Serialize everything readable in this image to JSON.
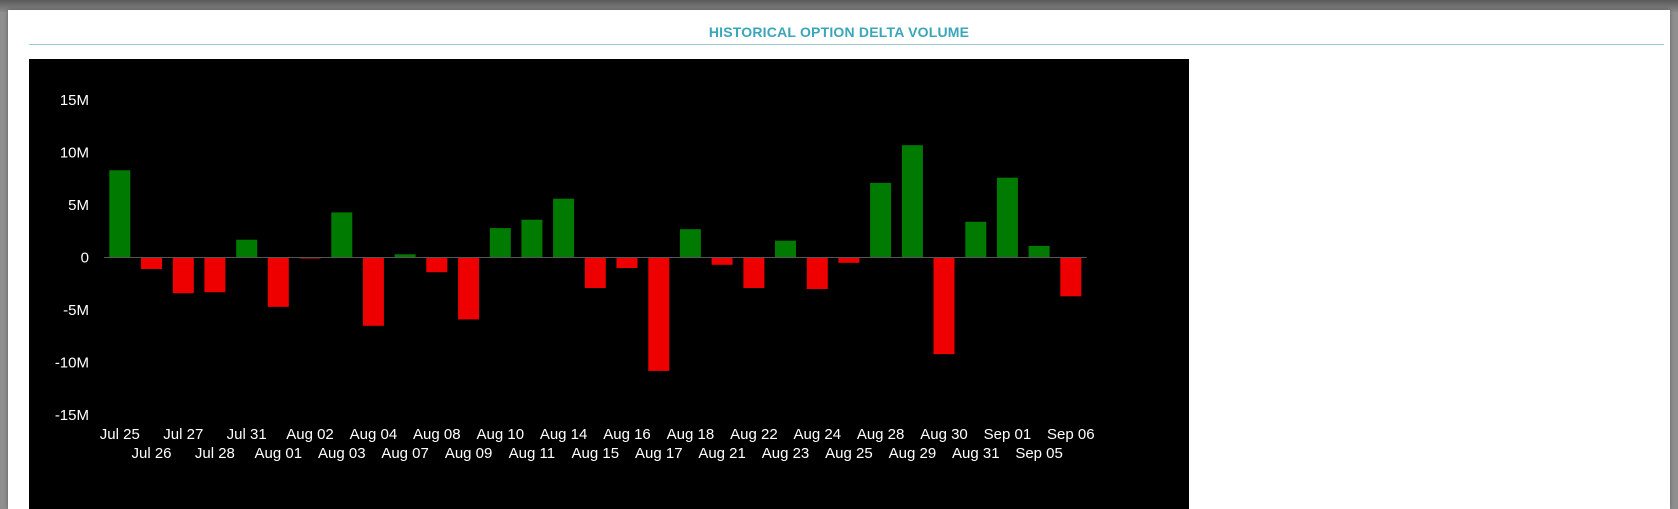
{
  "panel": {
    "title": "HISTORICAL OPTION DELTA VOLUME"
  },
  "colors": {
    "positive": "#007a00",
    "negative": "#ee0000",
    "background": "#000000",
    "title": "#3aa6b9"
  },
  "chart_data": {
    "type": "bar",
    "title": "",
    "xlabel": "",
    "ylabel": "",
    "ylim": [
      -15000000,
      15000000
    ],
    "yticks": [
      {
        "value": 15000000,
        "label": "15M"
      },
      {
        "value": 10000000,
        "label": "10M"
      },
      {
        "value": 5000000,
        "label": "5M"
      },
      {
        "value": 0,
        "label": "0"
      },
      {
        "value": -5000000,
        "label": "-5M"
      },
      {
        "value": -10000000,
        "label": "-10M"
      },
      {
        "value": -15000000,
        "label": "-15M"
      }
    ],
    "grid": false,
    "legend": "none",
    "categories": [
      "Jul 25",
      "Jul 26",
      "Jul 27",
      "Jul 28",
      "Jul 31",
      "Aug 01",
      "Aug 02",
      "Aug 03",
      "Aug 04",
      "Aug 07",
      "Aug 08",
      "Aug 09",
      "Aug 10",
      "Aug 11",
      "Aug 14",
      "Aug 15",
      "Aug 16",
      "Aug 17",
      "Aug 18",
      "Aug 21",
      "Aug 22",
      "Aug 23",
      "Aug 24",
      "Aug 25",
      "Aug 28",
      "Aug 29",
      "Aug 30",
      "Aug 31",
      "Sep 01",
      "Sep 05",
      "Sep 06"
    ],
    "values": [
      8300000,
      -1100000,
      -3400000,
      -3300000,
      1700000,
      -4700000,
      -100000,
      4300000,
      -6500000,
      300000,
      -1400000,
      -5900000,
      2800000,
      3600000,
      5600000,
      -2900000,
      -1000000,
      -10800000,
      2700000,
      -700000,
      -2900000,
      1600000,
      -3000000,
      -500000,
      7100000,
      10700000,
      -9200000,
      3400000,
      7600000,
      1100000,
      -3700000
    ]
  }
}
